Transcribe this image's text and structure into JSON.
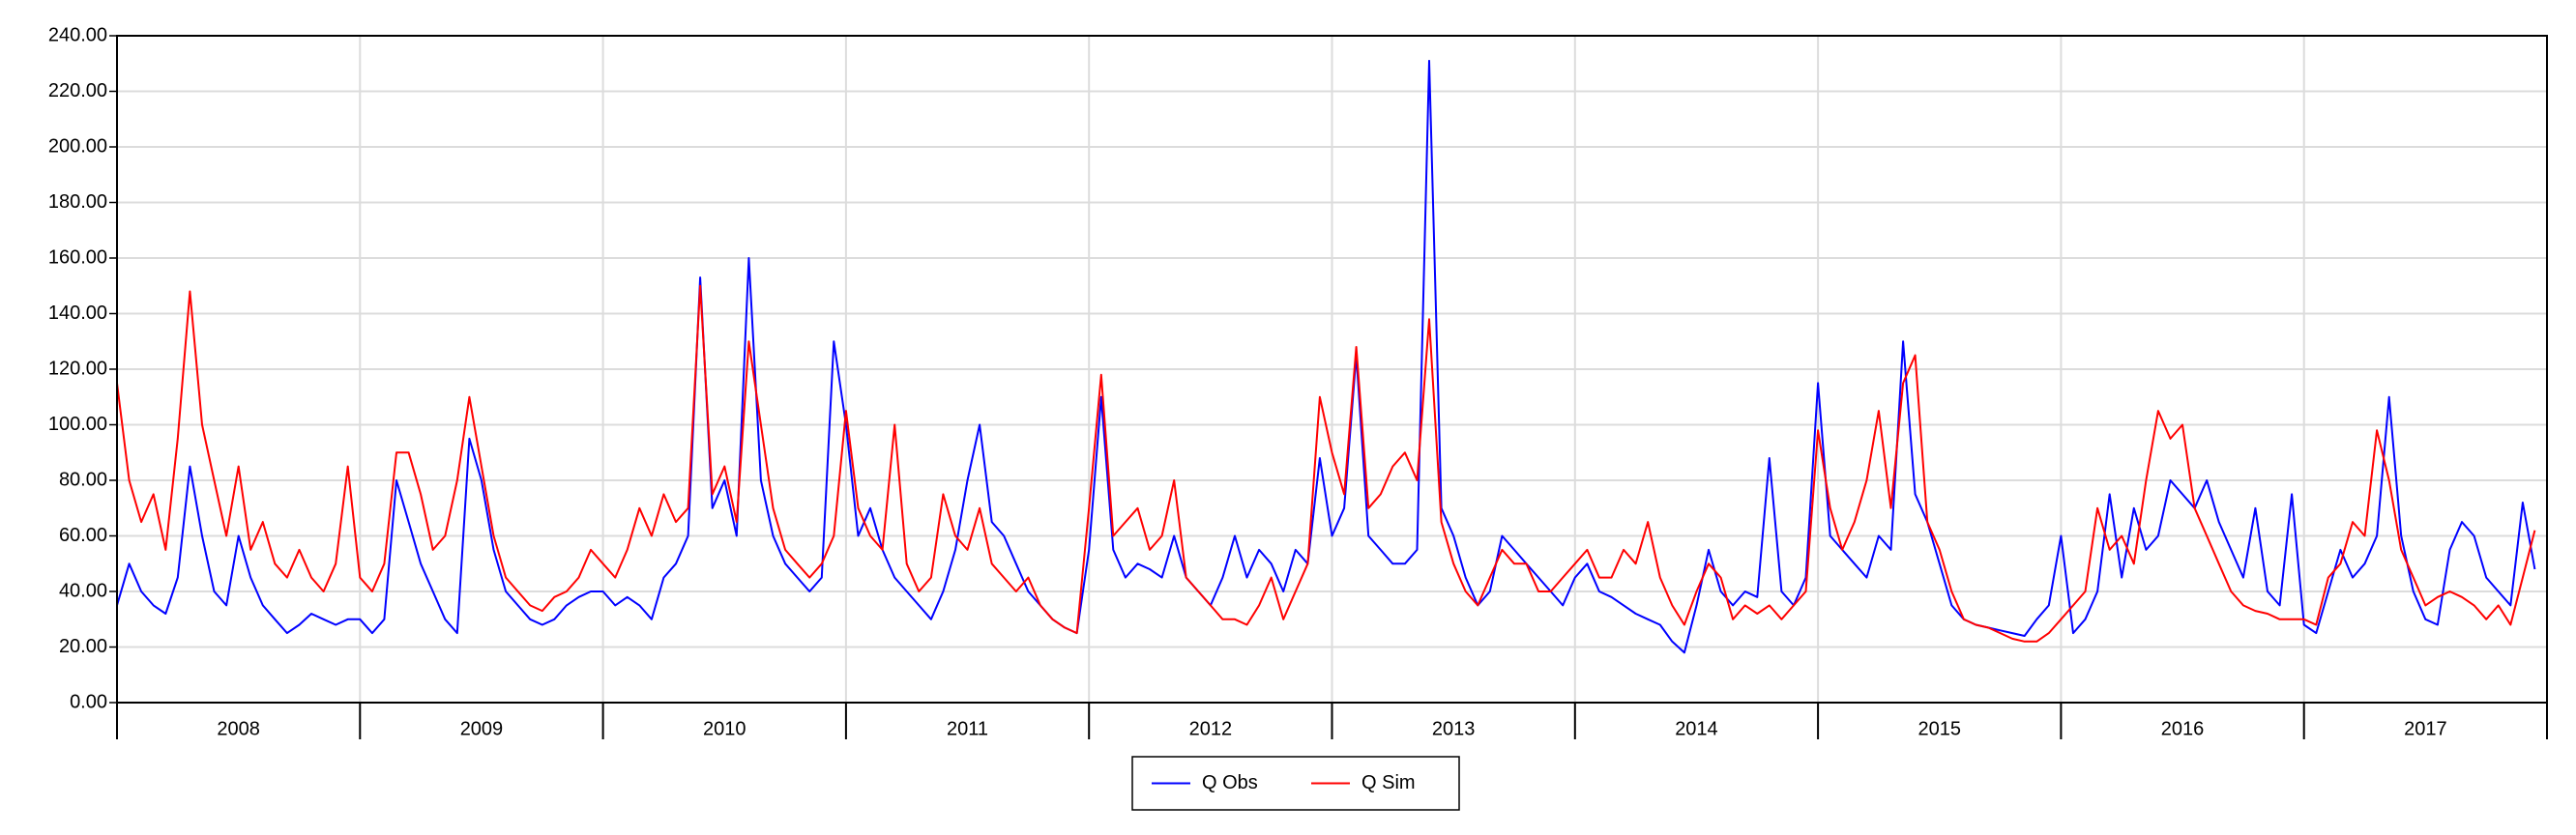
{
  "chart_data": {
    "type": "line",
    "x": [
      2008.0,
      2008.05,
      2008.1,
      2008.15,
      2008.2,
      2008.25,
      2008.3,
      2008.35,
      2008.4,
      2008.45,
      2008.5,
      2008.55,
      2008.6,
      2008.65,
      2008.7,
      2008.75,
      2008.8,
      2008.85,
      2008.9,
      2008.95,
      2009.0,
      2009.05,
      2009.1,
      2009.15,
      2009.2,
      2009.25,
      2009.3,
      2009.35,
      2009.4,
      2009.45,
      2009.5,
      2009.55,
      2009.6,
      2009.65,
      2009.7,
      2009.75,
      2009.8,
      2009.85,
      2009.9,
      2009.95,
      2010.0,
      2010.05,
      2010.1,
      2010.15,
      2010.2,
      2010.25,
      2010.3,
      2010.35,
      2010.4,
      2010.45,
      2010.5,
      2010.55,
      2010.6,
      2010.65,
      2010.7,
      2010.75,
      2010.8,
      2010.85,
      2010.9,
      2010.95,
      2011.0,
      2011.05,
      2011.1,
      2011.15,
      2011.2,
      2011.25,
      2011.3,
      2011.35,
      2011.4,
      2011.45,
      2011.5,
      2011.55,
      2011.6,
      2011.65,
      2011.7,
      2011.75,
      2011.8,
      2011.85,
      2011.9,
      2011.95,
      2012.0,
      2012.05,
      2012.1,
      2012.15,
      2012.2,
      2012.25,
      2012.3,
      2012.35,
      2012.4,
      2012.45,
      2012.5,
      2012.55,
      2012.6,
      2012.65,
      2012.7,
      2012.75,
      2012.8,
      2012.85,
      2012.9,
      2012.95,
      2013.0,
      2013.05,
      2013.1,
      2013.15,
      2013.2,
      2013.25,
      2013.3,
      2013.35,
      2013.4,
      2013.45,
      2013.5,
      2013.55,
      2013.6,
      2013.65,
      2013.7,
      2013.75,
      2013.8,
      2013.85,
      2013.9,
      2013.95,
      2014.0,
      2014.05,
      2014.1,
      2014.15,
      2014.2,
      2014.25,
      2014.3,
      2014.35,
      2014.4,
      2014.45,
      2014.5,
      2014.55,
      2014.6,
      2014.65,
      2014.7,
      2014.75,
      2014.8,
      2014.85,
      2014.9,
      2014.95,
      2015.0,
      2015.05,
      2015.1,
      2015.15,
      2015.2,
      2015.25,
      2015.3,
      2015.35,
      2015.4,
      2015.45,
      2015.5,
      2015.55,
      2015.6,
      2015.65,
      2015.7,
      2015.75,
      2015.8,
      2015.85,
      2015.9,
      2015.95,
      2016.0,
      2016.05,
      2016.1,
      2016.15,
      2016.2,
      2016.25,
      2016.3,
      2016.35,
      2016.4,
      2016.45,
      2016.5,
      2016.55,
      2016.6,
      2016.65,
      2016.7,
      2016.75,
      2016.8,
      2016.85,
      2016.9,
      2016.95,
      2017.0,
      2017.05,
      2017.1,
      2017.15,
      2017.2,
      2017.25,
      2017.3,
      2017.35,
      2017.4,
      2017.45,
      2017.5,
      2017.55,
      2017.6,
      2017.65,
      2017.7,
      2017.75,
      2017.8,
      2017.85,
      2017.9,
      2017.95
    ],
    "series": [
      {
        "name": "Q Obs",
        "color": "#0000ff",
        "values": [
          35,
          50,
          40,
          35,
          32,
          45,
          85,
          60,
          40,
          35,
          60,
          45,
          35,
          30,
          25,
          28,
          32,
          30,
          28,
          30,
          30,
          25,
          30,
          80,
          65,
          50,
          40,
          30,
          25,
          95,
          80,
          55,
          40,
          35,
          30,
          28,
          30,
          35,
          38,
          40,
          40,
          35,
          38,
          35,
          30,
          45,
          50,
          60,
          153,
          70,
          80,
          60,
          160,
          80,
          60,
          50,
          45,
          40,
          45,
          130,
          100,
          60,
          70,
          55,
          45,
          40,
          35,
          30,
          40,
          55,
          80,
          100,
          65,
          60,
          50,
          40,
          35,
          30,
          27,
          25,
          55,
          110,
          55,
          45,
          50,
          48,
          45,
          60,
          45,
          40,
          35,
          45,
          60,
          45,
          55,
          50,
          40,
          55,
          50,
          88,
          60,
          70,
          125,
          60,
          55,
          50,
          50,
          55,
          231,
          70,
          60,
          45,
          35,
          40,
          60,
          55,
          50,
          45,
          40,
          35,
          45,
          50,
          40,
          38,
          35,
          32,
          30,
          28,
          22,
          18,
          35,
          55,
          40,
          35,
          40,
          38,
          88,
          40,
          35,
          45,
          115,
          60,
          55,
          50,
          45,
          60,
          55,
          130,
          75,
          65,
          50,
          35,
          30,
          28,
          27,
          26,
          25,
          24,
          30,
          35,
          60,
          25,
          30,
          40,
          75,
          45,
          70,
          55,
          60,
          80,
          75,
          70,
          80,
          65,
          55,
          45,
          70,
          40,
          35,
          75,
          28,
          25,
          40,
          55,
          45,
          50,
          60,
          110,
          60,
          40,
          30,
          28,
          55,
          65,
          60,
          45,
          40,
          35,
          72,
          48
        ]
      },
      {
        "name": "Q Sim",
        "color": "#ff0000",
        "values": [
          115,
          80,
          65,
          75,
          55,
          95,
          148,
          100,
          80,
          60,
          85,
          55,
          65,
          50,
          45,
          55,
          45,
          40,
          50,
          85,
          45,
          40,
          50,
          90,
          90,
          75,
          55,
          60,
          80,
          110,
          85,
          60,
          45,
          40,
          35,
          33,
          38,
          40,
          45,
          55,
          50,
          45,
          55,
          70,
          60,
          75,
          65,
          70,
          150,
          75,
          85,
          65,
          130,
          100,
          70,
          55,
          50,
          45,
          50,
          60,
          105,
          70,
          60,
          55,
          100,
          50,
          40,
          45,
          75,
          60,
          55,
          70,
          50,
          45,
          40,
          45,
          35,
          30,
          27,
          25,
          70,
          118,
          60,
          65,
          70,
          55,
          60,
          80,
          45,
          40,
          35,
          30,
          30,
          28,
          35,
          45,
          30,
          40,
          50,
          110,
          90,
          75,
          128,
          70,
          75,
          85,
          90,
          80,
          138,
          65,
          50,
          40,
          35,
          45,
          55,
          50,
          50,
          40,
          40,
          45,
          50,
          55,
          45,
          45,
          55,
          50,
          65,
          45,
          35,
          28,
          40,
          50,
          45,
          30,
          35,
          32,
          35,
          30,
          35,
          40,
          98,
          70,
          55,
          65,
          80,
          105,
          70,
          115,
          125,
          65,
          55,
          40,
          30,
          28,
          27,
          25,
          23,
          22,
          22,
          25,
          30,
          35,
          40,
          70,
          55,
          60,
          50,
          80,
          105,
          95,
          100,
          70,
          60,
          50,
          40,
          35,
          33,
          32,
          30,
          30,
          30,
          28,
          45,
          50,
          65,
          60,
          98,
          80,
          55,
          45,
          35,
          38,
          40,
          38,
          35,
          30,
          35,
          28,
          45,
          62
        ]
      }
    ],
    "xlim": [
      2008,
      2018
    ],
    "xticks": [
      2008,
      2009,
      2010,
      2011,
      2012,
      2013,
      2014,
      2015,
      2016,
      2017,
      2018
    ],
    "year_labels": [
      "2008",
      "2009",
      "2010",
      "2011",
      "2012",
      "2013",
      "2014",
      "2015",
      "2016",
      "2017"
    ],
    "ylim": [
      0,
      240
    ],
    "yticks": [
      {
        "value": 0,
        "label": "0.00"
      },
      {
        "value": 20,
        "label": "20.00"
      },
      {
        "value": 40,
        "label": "40.00"
      },
      {
        "value": 60,
        "label": "60.00"
      },
      {
        "value": 80,
        "label": "80.00"
      },
      {
        "value": 100,
        "label": "100.00"
      },
      {
        "value": 120,
        "label": "120.00"
      },
      {
        "value": 140,
        "label": "140.00"
      },
      {
        "value": 160,
        "label": "160.00"
      },
      {
        "value": 180,
        "label": "180.00"
      },
      {
        "value": 200,
        "label": "200.00"
      },
      {
        "value": 220,
        "label": "220.00"
      },
      {
        "value": 240,
        "label": "240.00"
      }
    ],
    "grid": true,
    "legend": "bottom"
  }
}
